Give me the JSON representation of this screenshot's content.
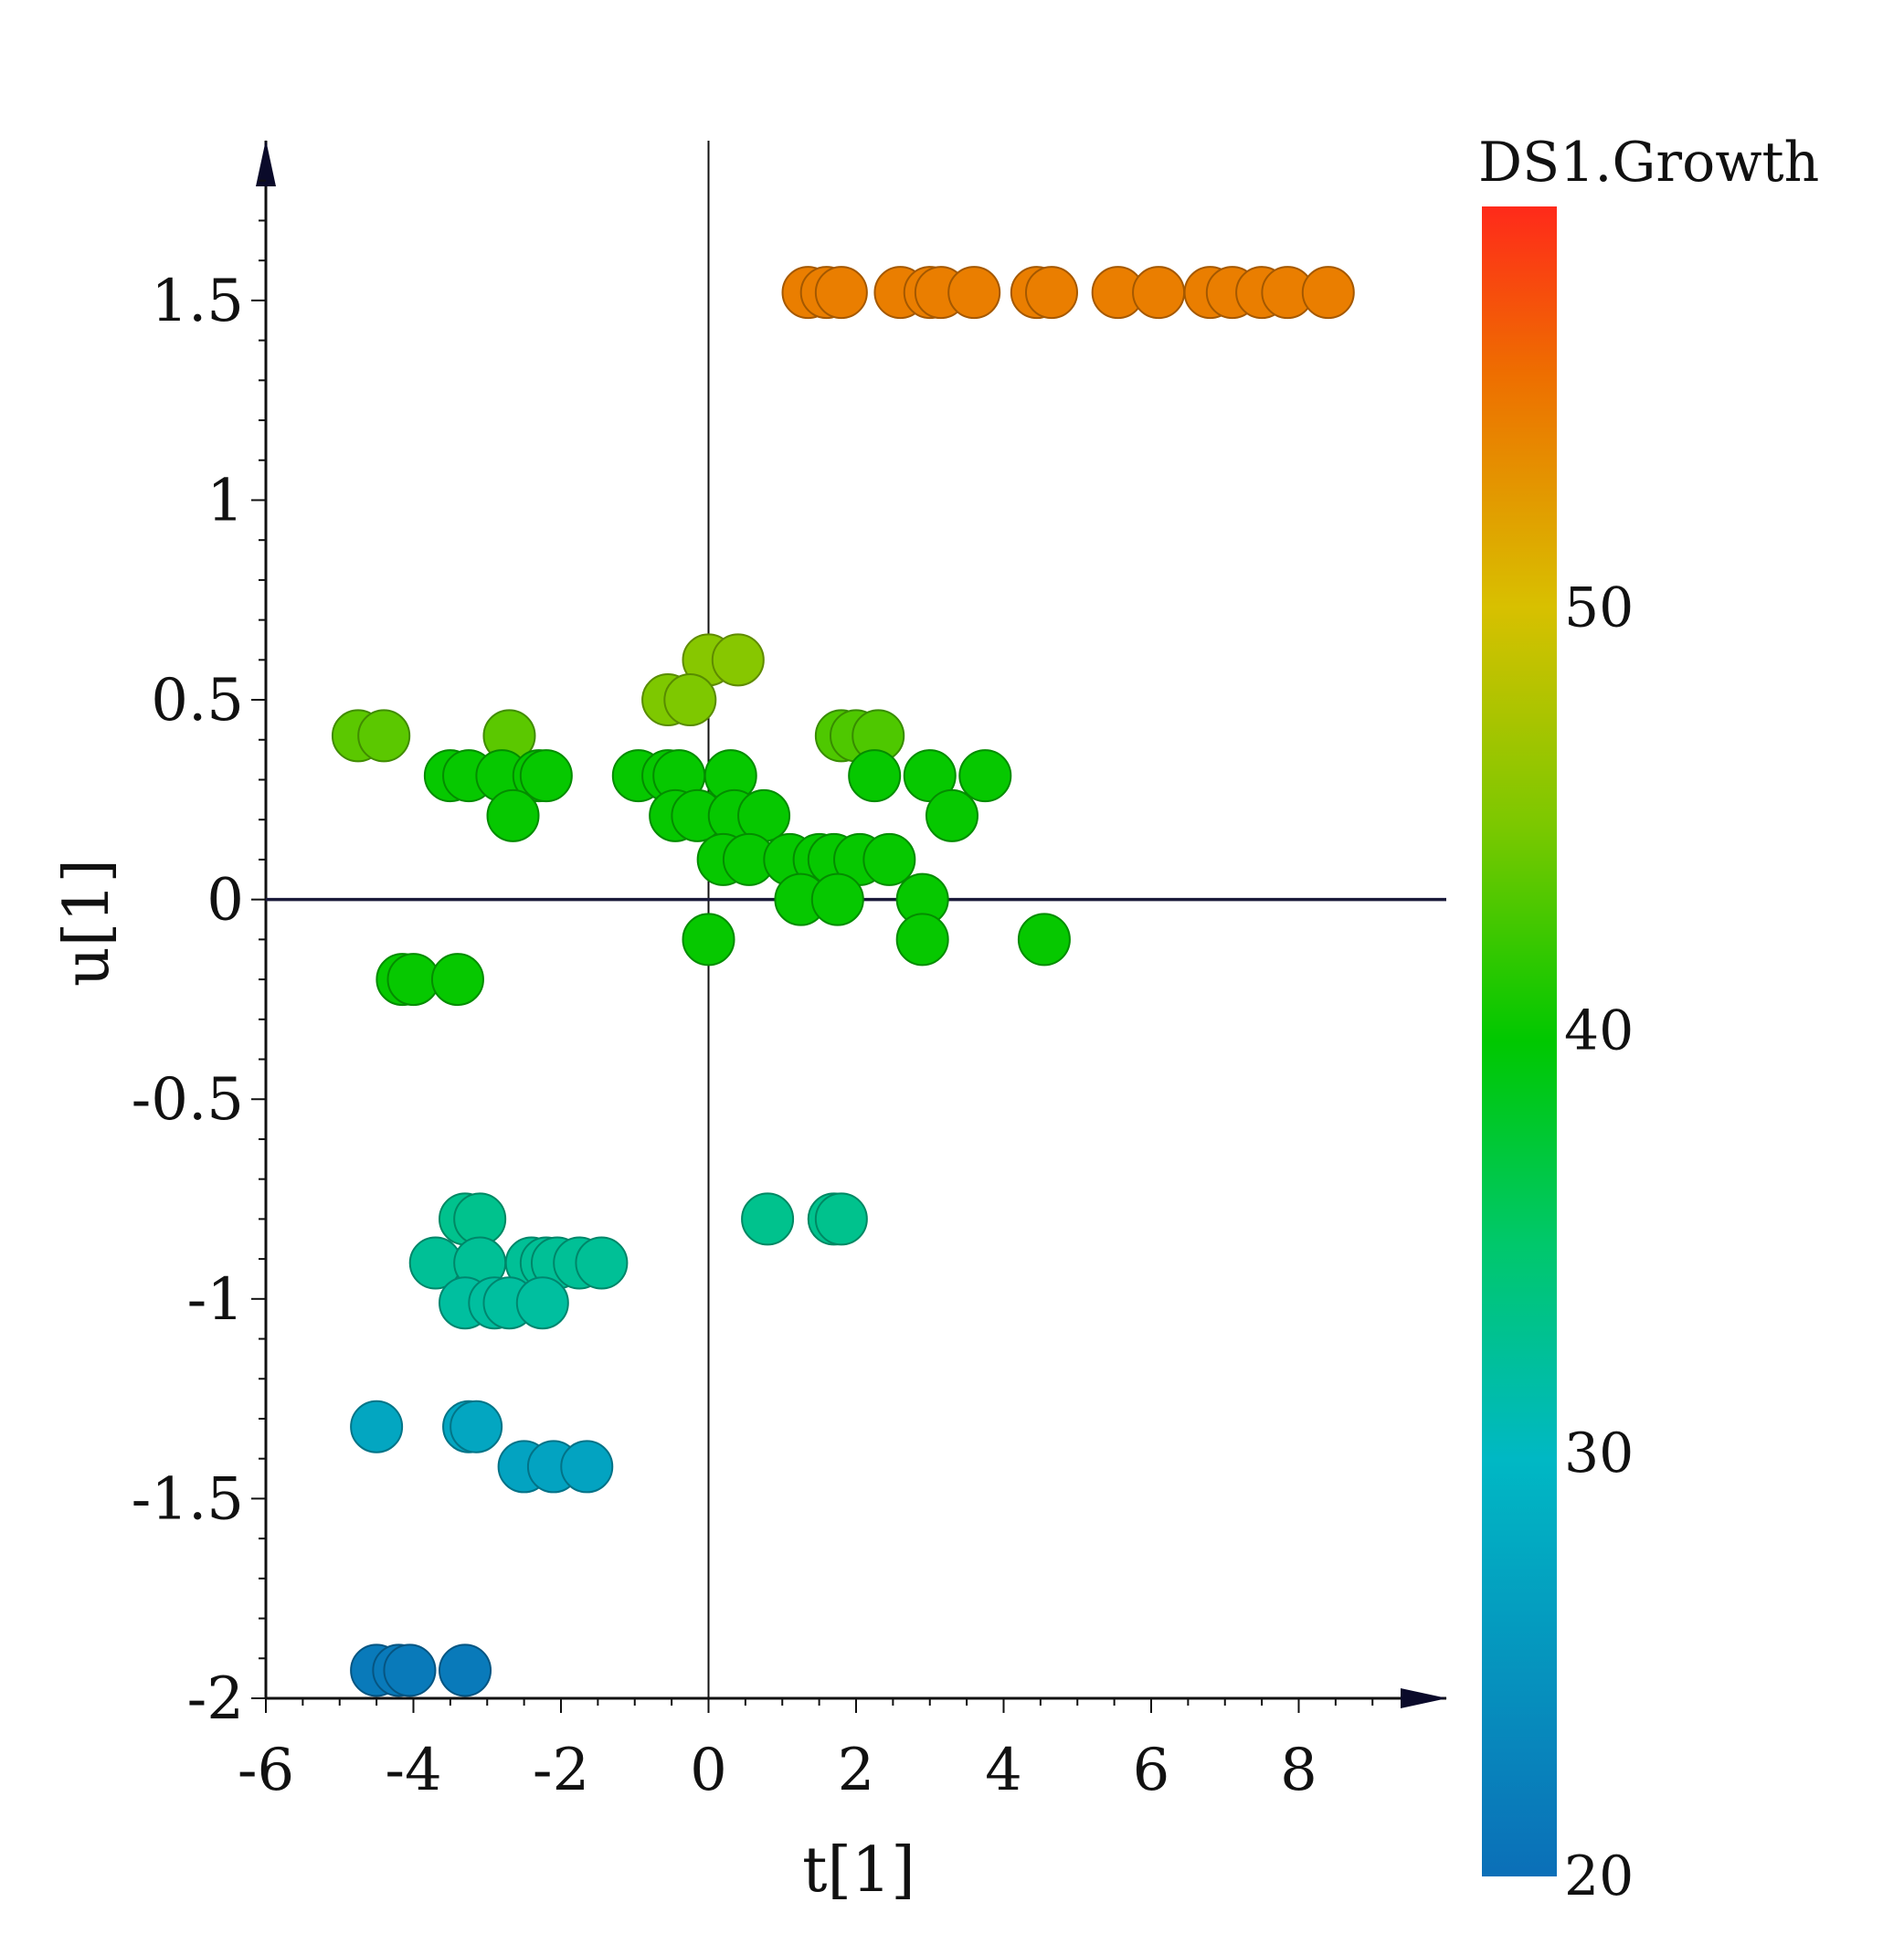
{
  "chart_data": {
    "type": "scatter",
    "xlabel": "t[1]",
    "ylabel": "u[1]",
    "xlim": [
      -6,
      10
    ],
    "ylim": [
      -2,
      1.9
    ],
    "xticks": [
      -6,
      -4,
      -2,
      0,
      2,
      4,
      6,
      8
    ],
    "yticks": [
      -2,
      -1.5,
      -1,
      -0.5,
      0,
      0.5,
      1,
      1.5
    ],
    "xtick_labels": [
      "-6",
      "-4",
      "-2",
      "0",
      "2",
      "4",
      "6",
      "8"
    ],
    "ytick_labels": [
      "-2",
      "-1.5",
      "-1",
      "-0.5",
      "0",
      "0.5",
      "1",
      "1.5"
    ],
    "grid": false,
    "colorbar": {
      "title": "DS1.Growth",
      "range": [
        20,
        59.5
      ],
      "ticks": [
        20,
        30,
        40,
        50
      ],
      "tick_labels": [
        "20",
        "30",
        "40",
        "50"
      ],
      "colors": [
        "#0b6fb8",
        "#00b8c4",
        "#00c86a",
        "#00c800",
        "#d8c000",
        "#ee6e00",
        "#ff2a1a"
      ]
    },
    "points": [
      {
        "x": 1.35,
        "y": 1.52,
        "c": 54.5
      },
      {
        "x": 1.6,
        "y": 1.52,
        "c": 54.5
      },
      {
        "x": 1.8,
        "y": 1.52,
        "c": 54.5
      },
      {
        "x": 2.6,
        "y": 1.52,
        "c": 54.5
      },
      {
        "x": 3.0,
        "y": 1.52,
        "c": 54.5
      },
      {
        "x": 3.15,
        "y": 1.52,
        "c": 54.5
      },
      {
        "x": 3.6,
        "y": 1.52,
        "c": 54.5
      },
      {
        "x": 4.45,
        "y": 1.52,
        "c": 54.5
      },
      {
        "x": 4.65,
        "y": 1.52,
        "c": 54.5
      },
      {
        "x": 5.55,
        "y": 1.52,
        "c": 54.5
      },
      {
        "x": 6.1,
        "y": 1.52,
        "c": 54.5
      },
      {
        "x": 6.8,
        "y": 1.52,
        "c": 54.5
      },
      {
        "x": 7.1,
        "y": 1.52,
        "c": 54.5
      },
      {
        "x": 7.5,
        "y": 1.52,
        "c": 54.5
      },
      {
        "x": 7.85,
        "y": 1.52,
        "c": 54.5
      },
      {
        "x": 8.4,
        "y": 1.52,
        "c": 54.5
      },
      {
        "x": 0.0,
        "y": 0.6,
        "c": 45.5
      },
      {
        "x": 0.4,
        "y": 0.6,
        "c": 45.5
      },
      {
        "x": -0.55,
        "y": 0.5,
        "c": 45
      },
      {
        "x": -0.25,
        "y": 0.5,
        "c": 45
      },
      {
        "x": -4.75,
        "y": 0.41,
        "c": 43.5
      },
      {
        "x": -4.4,
        "y": 0.41,
        "c": 43.5
      },
      {
        "x": -2.7,
        "y": 0.41,
        "c": 43.5
      },
      {
        "x": 1.8,
        "y": 0.41,
        "c": 43
      },
      {
        "x": 2.0,
        "y": 0.41,
        "c": 43
      },
      {
        "x": 2.3,
        "y": 0.41,
        "c": 43
      },
      {
        "x": -3.5,
        "y": 0.31,
        "c": 40
      },
      {
        "x": -3.25,
        "y": 0.31,
        "c": 40
      },
      {
        "x": -2.8,
        "y": 0.31,
        "c": 40
      },
      {
        "x": -2.3,
        "y": 0.31,
        "c": 40
      },
      {
        "x": -2.2,
        "y": 0.31,
        "c": 40
      },
      {
        "x": -0.95,
        "y": 0.31,
        "c": 40
      },
      {
        "x": -0.55,
        "y": 0.31,
        "c": 40
      },
      {
        "x": -0.4,
        "y": 0.31,
        "c": 40
      },
      {
        "x": 0.3,
        "y": 0.31,
        "c": 40
      },
      {
        "x": 2.25,
        "y": 0.31,
        "c": 40
      },
      {
        "x": 3.0,
        "y": 0.31,
        "c": 40
      },
      {
        "x": 3.75,
        "y": 0.31,
        "c": 40
      },
      {
        "x": -2.65,
        "y": 0.21,
        "c": 40
      },
      {
        "x": -0.45,
        "y": 0.21,
        "c": 40
      },
      {
        "x": -0.15,
        "y": 0.21,
        "c": 40
      },
      {
        "x": 0.35,
        "y": 0.21,
        "c": 40
      },
      {
        "x": 0.75,
        "y": 0.21,
        "c": 40
      },
      {
        "x": 3.3,
        "y": 0.21,
        "c": 40
      },
      {
        "x": 0.2,
        "y": 0.1,
        "c": 40
      },
      {
        "x": 0.55,
        "y": 0.1,
        "c": 40
      },
      {
        "x": 1.1,
        "y": 0.1,
        "c": 40
      },
      {
        "x": 1.5,
        "y": 0.1,
        "c": 40
      },
      {
        "x": 1.7,
        "y": 0.1,
        "c": 40
      },
      {
        "x": 2.05,
        "y": 0.1,
        "c": 40
      },
      {
        "x": 2.45,
        "y": 0.1,
        "c": 40
      },
      {
        "x": 1.25,
        "y": 0.0,
        "c": 40
      },
      {
        "x": 1.75,
        "y": 0.0,
        "c": 40
      },
      {
        "x": 2.9,
        "y": 0.0,
        "c": 40
      },
      {
        "x": 0.0,
        "y": -0.1,
        "c": 40
      },
      {
        "x": 2.9,
        "y": -0.1,
        "c": 40
      },
      {
        "x": 4.55,
        "y": -0.1,
        "c": 40
      },
      {
        "x": -4.15,
        "y": -0.2,
        "c": 40
      },
      {
        "x": -4.0,
        "y": -0.2,
        "c": 40
      },
      {
        "x": -3.4,
        "y": -0.2,
        "c": 40
      },
      {
        "x": -3.3,
        "y": -0.8,
        "c": 33
      },
      {
        "x": -3.1,
        "y": -0.8,
        "c": 33
      },
      {
        "x": 0.8,
        "y": -0.8,
        "c": 33
      },
      {
        "x": 1.7,
        "y": -0.8,
        "c": 33
      },
      {
        "x": 1.8,
        "y": -0.8,
        "c": 33
      },
      {
        "x": -3.7,
        "y": -0.91,
        "c": 32.5
      },
      {
        "x": -3.1,
        "y": -0.91,
        "c": 32.5
      },
      {
        "x": -2.4,
        "y": -0.91,
        "c": 32.5
      },
      {
        "x": -2.2,
        "y": -0.91,
        "c": 32.5
      },
      {
        "x": -2.05,
        "y": -0.91,
        "c": 32.5
      },
      {
        "x": -1.75,
        "y": -0.91,
        "c": 32.5
      },
      {
        "x": -1.45,
        "y": -0.91,
        "c": 32.5
      },
      {
        "x": -3.3,
        "y": -1.01,
        "c": 32
      },
      {
        "x": -2.9,
        "y": -1.01,
        "c": 32
      },
      {
        "x": -2.7,
        "y": -1.01,
        "c": 32
      },
      {
        "x": -2.25,
        "y": -1.01,
        "c": 32
      },
      {
        "x": -4.5,
        "y": -1.32,
        "c": 27.5
      },
      {
        "x": -3.25,
        "y": -1.32,
        "c": 27.5
      },
      {
        "x": -3.15,
        "y": -1.32,
        "c": 27.5
      },
      {
        "x": -2.5,
        "y": -1.42,
        "c": 27
      },
      {
        "x": -2.1,
        "y": -1.42,
        "c": 27
      },
      {
        "x": -1.65,
        "y": -1.42,
        "c": 27
      },
      {
        "x": -4.5,
        "y": -1.93,
        "c": 21.5
      },
      {
        "x": -4.2,
        "y": -1.93,
        "c": 21.5
      },
      {
        "x": -4.05,
        "y": -1.93,
        "c": 21.5
      },
      {
        "x": -3.3,
        "y": -1.93,
        "c": 21.5
      }
    ]
  }
}
